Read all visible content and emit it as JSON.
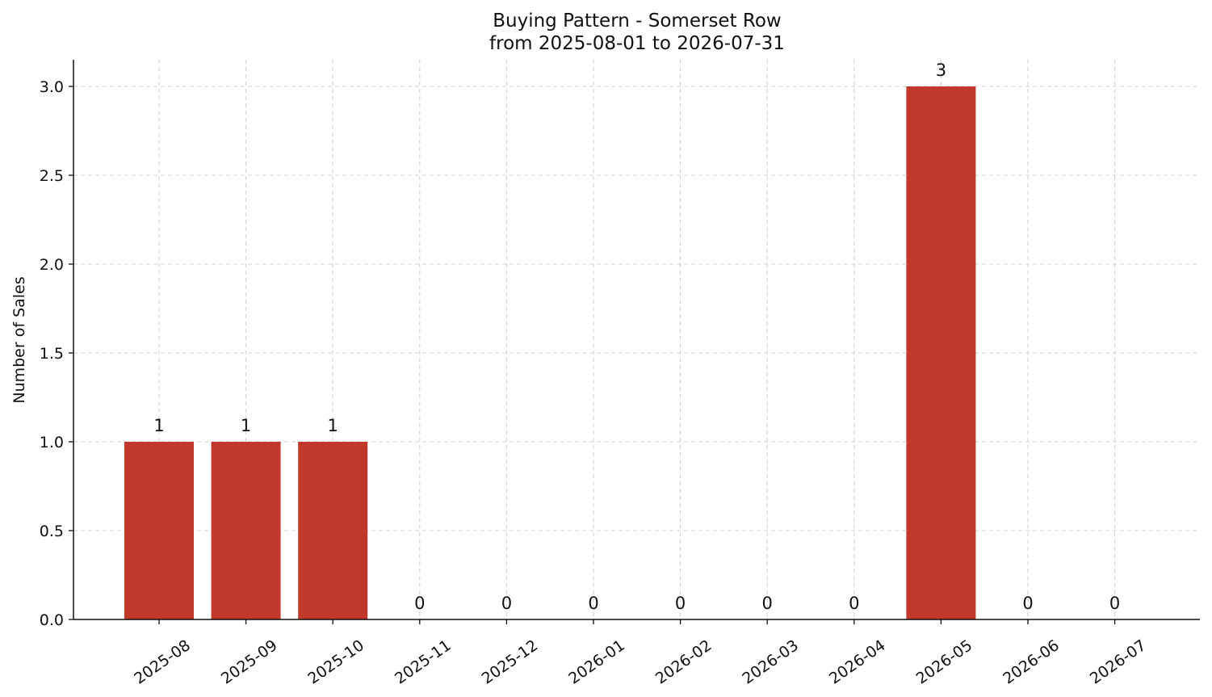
{
  "chart_data": {
    "type": "bar",
    "title": "Buying Pattern - Somerset Row",
    "subtitle": "from 2025-08-01 to 2026-07-31",
    "xlabel": "",
    "ylabel": "Number of Sales",
    "categories": [
      "2025-08",
      "2025-09",
      "2025-10",
      "2025-11",
      "2025-12",
      "2026-01",
      "2026-02",
      "2026-03",
      "2026-04",
      "2026-05",
      "2026-06",
      "2026-07"
    ],
    "values": [
      1,
      1,
      1,
      0,
      0,
      0,
      0,
      0,
      0,
      3,
      0,
      0
    ],
    "data_labels": [
      "1",
      "1",
      "1",
      "0",
      "0",
      "0",
      "0",
      "0",
      "0",
      "3",
      "0",
      "0"
    ],
    "y_ticks": [
      "0.0",
      "0.5",
      "1.0",
      "1.5",
      "2.0",
      "2.5",
      "3.0"
    ],
    "ylim": [
      0,
      3.15
    ],
    "grid": true,
    "bar_color": "#c0392b"
  }
}
